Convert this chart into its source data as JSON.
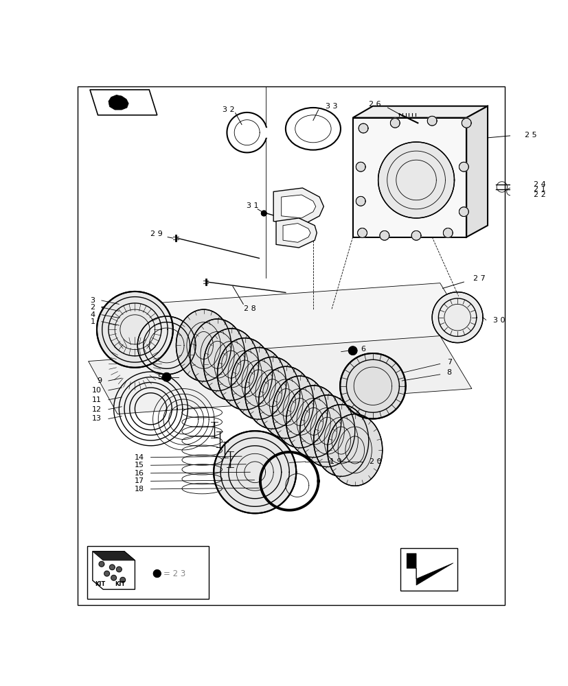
{
  "bg_color": "#ffffff",
  "line_color": "#000000",
  "fig_width": 8.28,
  "fig_height": 10.0
}
